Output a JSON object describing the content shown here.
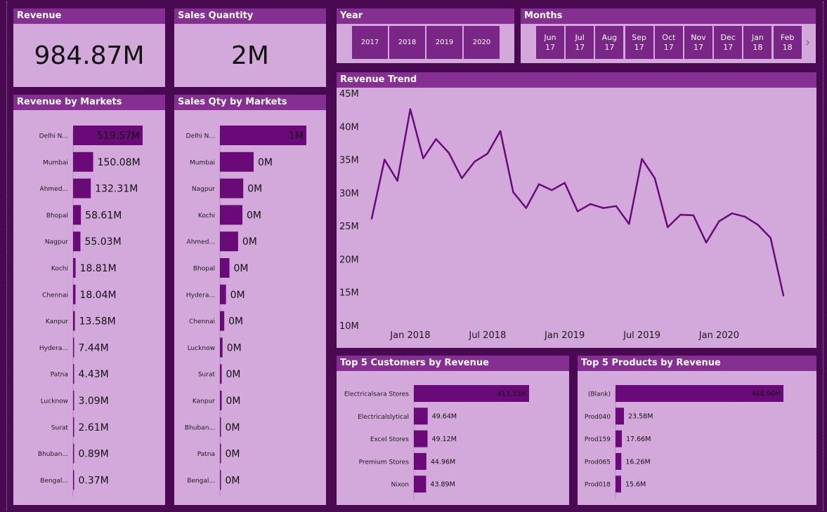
{
  "kpis": {
    "revenue": {
      "title": "Revenue",
      "value": "984.87M"
    },
    "sales_qty": {
      "title": "Sales Quantity",
      "value": "2M"
    }
  },
  "slicers": {
    "year": {
      "title": "Year",
      "options": [
        "2017",
        "2018",
        "2019",
        "2020"
      ]
    },
    "months": {
      "title": "Months",
      "options": [
        {
          "month": "Jun",
          "year": "17"
        },
        {
          "month": "Jul",
          "year": "17"
        },
        {
          "month": "Aug",
          "year": "17"
        },
        {
          "month": "Sep",
          "year": "17"
        },
        {
          "month": "Oct",
          "year": "17"
        },
        {
          "month": "Nov",
          "year": "17"
        },
        {
          "month": "Dec",
          "year": "17"
        },
        {
          "month": "Jan",
          "year": "18"
        },
        {
          "month": "Feb",
          "year": "18"
        }
      ],
      "next_icon": "chevron-right-icon"
    }
  },
  "colors": {
    "bar": "#6a0a78",
    "panel": "#d3a9db",
    "header": "#852f93",
    "background": "#4a0a52"
  },
  "chart_data": [
    {
      "id": "revenue_by_markets",
      "type": "bar",
      "orientation": "horizontal",
      "title": "Revenue by Markets",
      "categories": [
        "Delhi N...",
        "Mumbai",
        "Ahmed...",
        "Bhopal",
        "Nagpur",
        "Kochi",
        "Chennai",
        "Kanpur",
        "Hydera...",
        "Patna",
        "Lucknow",
        "Surat",
        "Bhuban...",
        "Bengal..."
      ],
      "values": [
        519.57,
        150.08,
        132.31,
        58.61,
        55.03,
        18.81,
        18.04,
        13.58,
        7.44,
        4.43,
        3.09,
        2.61,
        0.89,
        0.37
      ],
      "labels": [
        "519.57M",
        "150.08M",
        "132.31M",
        "58.61M",
        "55.03M",
        "18.81M",
        "18.04M",
        "13.58M",
        "7.44M",
        "4.43M",
        "3.09M",
        "2.61M",
        "0.89M",
        "0.37M"
      ],
      "unit": "M"
    },
    {
      "id": "sales_qty_by_markets",
      "type": "bar",
      "orientation": "horizontal",
      "title": "Sales Qty by Markets",
      "categories": [
        "Delhi N...",
        "Mumbai",
        "Nagpur",
        "Kochi",
        "Ahmed...",
        "Bhopal",
        "Hydera...",
        "Chennai",
        "Lucknow",
        "Surat",
        "Kanpur",
        "Bhuban...",
        "Patna",
        "Bengal..."
      ],
      "values": [
        1.0,
        0.39,
        0.27,
        0.26,
        0.21,
        0.11,
        0.07,
        0.05,
        0.03,
        0.02,
        0.02,
        0.01,
        0.01,
        0.005
      ],
      "labels": [
        "1M",
        "0M",
        "0M",
        "0M",
        "0M",
        "0M",
        "0M",
        "0M",
        "0M",
        "0M",
        "0M",
        "0M",
        "0M",
        "0M"
      ],
      "unit": "M"
    },
    {
      "id": "revenue_trend",
      "type": "line",
      "title": "Revenue Trend",
      "x": [
        "2017-10",
        "2017-11",
        "2017-12",
        "2018-01",
        "2018-02",
        "2018-03",
        "2018-04",
        "2018-05",
        "2018-06",
        "2018-07",
        "2018-08",
        "2018-09",
        "2018-10",
        "2018-11",
        "2018-12",
        "2019-01",
        "2019-02",
        "2019-03",
        "2019-04",
        "2019-05",
        "2019-06",
        "2019-07",
        "2019-08",
        "2019-09",
        "2019-10",
        "2019-11",
        "2019-12",
        "2020-01",
        "2020-02",
        "2020-03",
        "2020-04",
        "2020-05",
        "2020-06"
      ],
      "values": [
        26.1,
        35.0,
        31.8,
        42.6,
        35.2,
        38.1,
        36.0,
        32.2,
        34.7,
        35.9,
        39.3,
        30.1,
        27.7,
        31.3,
        30.4,
        31.5,
        27.2,
        28.3,
        27.7,
        28.0,
        25.3,
        35.1,
        32.2,
        24.8,
        26.7,
        26.6,
        22.5,
        25.7,
        26.9,
        26.4,
        25.2,
        23.2,
        14.5
      ],
      "x_ticks": [
        "Jan 2018",
        "Jul 2018",
        "Jan 2019",
        "Jul 2019",
        "Jan 2020"
      ],
      "y_ticks": [
        "45M",
        "40M",
        "35M",
        "30M",
        "25M",
        "20M",
        "15M",
        "10M"
      ],
      "ylim": [
        10,
        45
      ],
      "unit": "M"
    },
    {
      "id": "top5_customers",
      "type": "bar",
      "orientation": "horizontal",
      "title": "Top 5 Customers by Revenue",
      "categories": [
        "Electricalsara Stores",
        "Electricalslytical",
        "Excel Stores",
        "Premium Stores",
        "Nixon"
      ],
      "values": [
        413.33,
        49.64,
        49.12,
        44.96,
        43.89
      ],
      "labels": [
        "413.33M",
        "49.64M",
        "49.12M",
        "44.96M",
        "43.89M"
      ],
      "unit": "M"
    },
    {
      "id": "top5_products",
      "type": "bar",
      "orientation": "horizontal",
      "title": "Top 5 Products by Revenue",
      "categories": [
        "(Blank)",
        "Prod040",
        "Prod159",
        "Prod065",
        "Prod018"
      ],
      "values": [
        468.96,
        23.58,
        17.66,
        16.26,
        15.6
      ],
      "labels": [
        "468.96M",
        "23.58M",
        "17.66M",
        "16.26M",
        "15.6M"
      ],
      "unit": "M"
    }
  ]
}
